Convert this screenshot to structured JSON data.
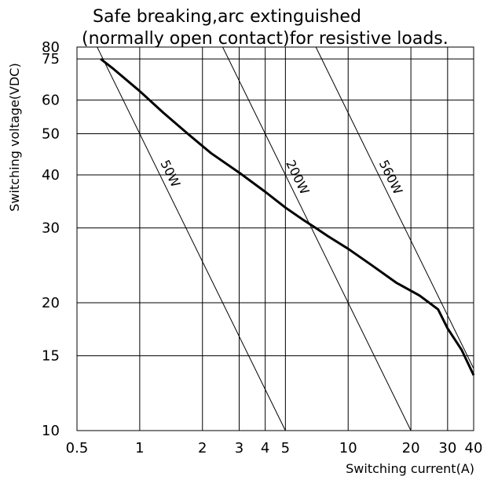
{
  "chart_data": {
    "type": "line",
    "title": [
      "Safe breaking,arc extinguished",
      "(normally open contact)for resistive loads."
    ],
    "xlabel": "Switching current(A)",
    "ylabel": "Switching voltage(VDC)",
    "x_scale": "log",
    "y_scale": "log",
    "xlim": [
      0.5,
      40
    ],
    "ylim": [
      10,
      80
    ],
    "x_ticks": [
      0.5,
      1,
      2,
      3,
      4,
      5,
      10,
      20,
      30,
      40
    ],
    "x_tick_labels": [
      "0.5",
      "1",
      "2",
      "3",
      "4",
      "5",
      "10",
      "20",
      "30",
      "40"
    ],
    "y_ticks": [
      10,
      15,
      20,
      30,
      40,
      50,
      60,
      75,
      80
    ],
    "y_tick_labels": [
      "10",
      "15",
      "20",
      "30",
      "40",
      "50",
      "60",
      "75",
      "80"
    ],
    "grid": true,
    "power_lines": [
      {
        "label": "50W",
        "watts": 50
      },
      {
        "label": "200W",
        "watts": 200
      },
      {
        "label": "560W",
        "watts": 560
      }
    ],
    "series": [
      {
        "x": [
          0.65,
          0.75,
          1.0,
          1.3,
          1.7,
          2.2,
          3.0,
          4.0,
          5.0,
          6.0,
          7.0,
          8.0,
          10.0,
          13.0,
          17.0,
          22.0,
          27.0,
          30.0,
          35.0,
          40.0
        ],
        "y": [
          75,
          71,
          63,
          56,
          50,
          45,
          40.5,
          36.5,
          33.5,
          31.5,
          30,
          28.7,
          26.8,
          24.5,
          22.3,
          20.8,
          19.3,
          17.4,
          15.5,
          13.5
        ]
      }
    ]
  }
}
